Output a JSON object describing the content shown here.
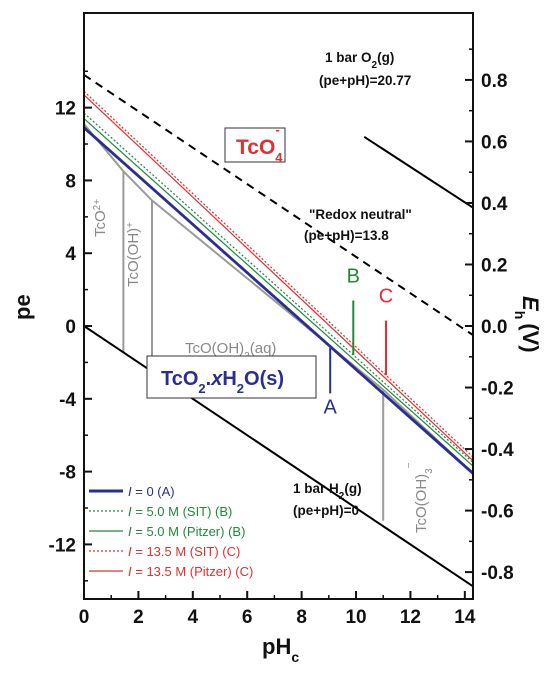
{
  "chart_data": {
    "type": "line",
    "title": "",
    "xlabel": "pH",
    "xlabel_sub": "c",
    "ylabel": "pe",
    "y2label": "E",
    "y2label_sub": "h",
    "y2label_unit": "(V)",
    "xlim": [
      0,
      14.3
    ],
    "ylim": [
      -15,
      17.2
    ],
    "y2lim": [
      -0.8874,
      1.0175
    ],
    "x_ticks": [
      0,
      2,
      4,
      6,
      8,
      10,
      12,
      14
    ],
    "y_ticks": [
      -12,
      -8,
      -4,
      0,
      4,
      8,
      12
    ],
    "y2_ticks": [
      "-0.8",
      "-0.6",
      "-0.4",
      "-0.2",
      "0.0",
      "0.2",
      "0.4",
      "0.6",
      "0.8"
    ],
    "y2_tick_values": [
      -0.8,
      -0.6,
      -0.4,
      -0.2,
      0.0,
      0.2,
      0.4,
      0.6,
      0.8
    ],
    "grid": false,
    "legend_position": "bottom-left",
    "boundary_lines": [
      {
        "id": "o2",
        "style": "solid",
        "color": "#000000",
        "points": [
          [
            10.3,
            10.4
          ],
          [
            14.3,
            6.5
          ]
        ],
        "label1": "1 bar O",
        "label1_sub": "2",
        "label1_end": "(g)",
        "label2": "(pe+pH)=20.77"
      },
      {
        "id": "neutral",
        "style": "dashed",
        "color": "#000000",
        "points": [
          [
            0,
            13.8
          ],
          [
            14.3,
            -0.5
          ]
        ],
        "label1": "\"Redox neutral\"",
        "label2": "(pe+pH)=13.8"
      },
      {
        "id": "h2",
        "style": "solid",
        "color": "#000000",
        "points": [
          [
            0,
            0
          ],
          [
            14.3,
            -14.3
          ]
        ],
        "label1": "1 bar H",
        "label1_sub": "2",
        "label1_end": "(g)",
        "label2": "(pe+pH)=0"
      }
    ],
    "series": [
      {
        "name": "I = 0 (A)",
        "color": "#2a2f8f",
        "style": "solid",
        "width": 2.8,
        "points": [
          [
            0,
            10.9
          ],
          [
            14.3,
            -8.1
          ]
        ]
      },
      {
        "name": "I = 5.0 M (SIT) (B)",
        "color": "#1f8a3a",
        "style": "dotted",
        "width": 1.2,
        "points": [
          [
            0,
            11.7
          ],
          [
            14.3,
            -7.5
          ]
        ]
      },
      {
        "name": "I = 5.0 M (Pitzer) (B)",
        "color": "#1f8a3a",
        "style": "solid",
        "width": 1.2,
        "points": [
          [
            0,
            11.4
          ],
          [
            14.3,
            -7.7
          ]
        ]
      },
      {
        "name": "I = 13.5 M (SIT) (C)",
        "color": "#e03030",
        "style": "dotted",
        "width": 1.2,
        "points": [
          [
            0,
            12.9
          ],
          [
            14.3,
            -7.2
          ]
        ]
      },
      {
        "name": "I = 13.5 M (Pitzer) (C)",
        "color": "#e03030",
        "style": "solid",
        "width": 1.2,
        "points": [
          [
            0,
            12.7
          ],
          [
            14.3,
            -7.4
          ]
        ]
      }
    ],
    "species_boundaries": [
      {
        "id": "tco-upper",
        "color": "#9a9a9a",
        "points": [
          [
            0,
            11.1
          ],
          [
            1.45,
            8.5
          ],
          [
            2.5,
            6.9
          ],
          [
            11.0,
            -3.5
          ],
          [
            14.3,
            -8.1
          ]
        ]
      },
      {
        "id": "tco2plus-tcooh",
        "color": "#9a9a9a",
        "points": [
          [
            1.45,
            8.5
          ],
          [
            1.45,
            -1.5
          ]
        ]
      },
      {
        "id": "tcooh-tcooh2",
        "color": "#9a9a9a",
        "points": [
          [
            2.5,
            6.9
          ],
          [
            2.5,
            -2.6
          ]
        ]
      },
      {
        "id": "tcooh2-tcooh3",
        "color": "#9a9a9a",
        "points": [
          [
            11.0,
            -3.5
          ],
          [
            11.0,
            -10.7
          ]
        ]
      }
    ],
    "series_labels": [
      {
        "text": "A",
        "color": "#2a2f8f",
        "at": [
          9.05,
          -4.8
        ],
        "leader": [
          [
            9.05,
            -1.2
          ],
          [
            9.05,
            -3.7
          ]
        ]
      },
      {
        "text": "B",
        "color": "#1f8a3a",
        "at": [
          9.9,
          2.4
        ],
        "leader": [
          [
            9.9,
            1.4
          ],
          [
            9.9,
            -1.6
          ]
        ]
      },
      {
        "text": "C",
        "color": "#e03030",
        "at": [
          11.1,
          1.3
        ],
        "leader": [
          [
            11.1,
            0.3
          ],
          [
            11.1,
            -2.7
          ]
        ]
      }
    ],
    "species_labels": [
      {
        "id": "tco2plus",
        "text": "TcO",
        "sup": "2+",
        "sub": "",
        "at": [
          0.55,
          4.7
        ],
        "rotate": -90
      },
      {
        "id": "tcooh",
        "text": "TcO(OH)",
        "sup": "+",
        "sub": "",
        "at": [
          2.0,
          4.7
        ],
        "rotate": -90
      },
      {
        "id": "tcooh2",
        "text": "TcO(OH)",
        "sub": "2",
        "after": "(aq)",
        "at": [
          6.4,
          -2.4
        ],
        "rotate": 0
      },
      {
        "id": "tcooh3",
        "text": "TcO(OH)",
        "sub": "3",
        "sup": "−",
        "at": [
          12.1,
          -6.2
        ],
        "rotate": -90
      }
    ],
    "boxed_labels": [
      {
        "id": "tco4",
        "text": "TcO",
        "sub": "4",
        "sup": "-",
        "color": "#e03030"
      },
      {
        "id": "tco2",
        "text": "TcO",
        "sub": "2",
        "middle": ".",
        "italic": "x",
        "after": "H",
        "sub2": "2",
        "end": "O(s)",
        "color": "#2a2f8f"
      }
    ],
    "legend": [
      {
        "label": "= 0 (A)",
        "color": "#2a2f8f",
        "style": "solid"
      },
      {
        "label": "= 5.0 M (SIT) (B)",
        "color": "#1f8a3a",
        "style": "dotted"
      },
      {
        "label": "= 5.0 M (Pitzer) (B)",
        "color": "#1f8a3a",
        "style": "solid"
      },
      {
        "label": "= 13.5 M (SIT) (C)",
        "color": "#e03030",
        "style": "dotted"
      },
      {
        "label": "= 13.5 M (Pitzer) (C)",
        "color": "#e03030",
        "style": "solid"
      }
    ],
    "legend_var": "I"
  }
}
